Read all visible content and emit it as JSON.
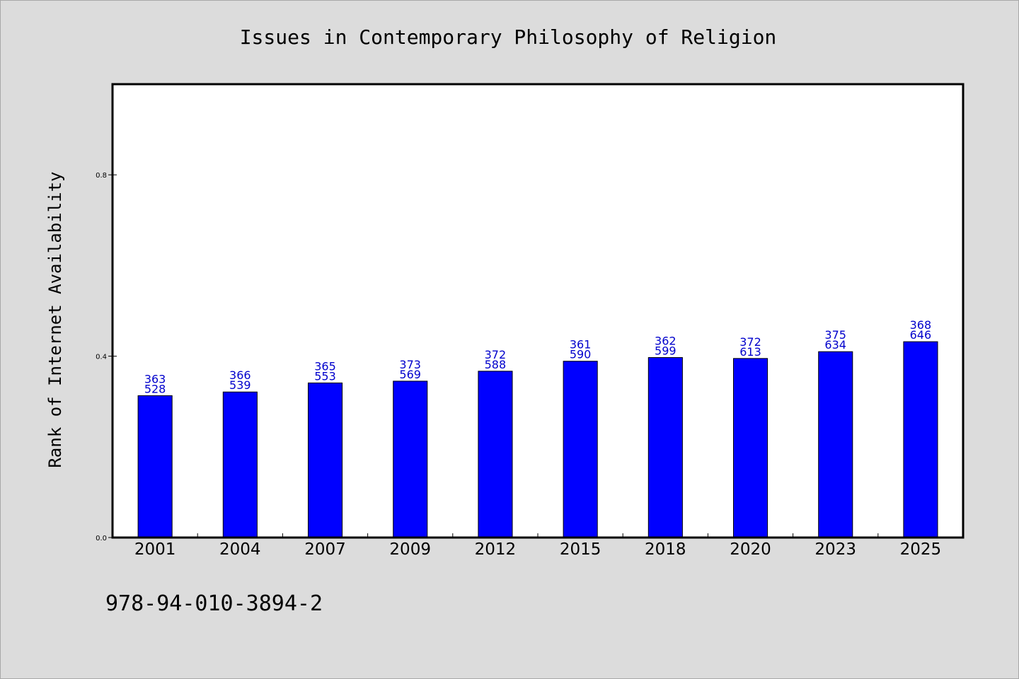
{
  "chart_data": {
    "type": "bar",
    "title": "Issues in Contemporary Philosophy of Religion",
    "xlabel": "",
    "ylabel": "Rank of Internet Availability",
    "categories": [
      "2001",
      "2004",
      "2007",
      "2009",
      "2012",
      "2015",
      "2018",
      "2020",
      "2023",
      "2025"
    ],
    "values": [
      0.313,
      0.321,
      0.341,
      0.345,
      0.367,
      0.389,
      0.397,
      0.395,
      0.41,
      0.432
    ],
    "data_labels": [
      [
        "363",
        "528"
      ],
      [
        "366",
        "539"
      ],
      [
        "365",
        "553"
      ],
      [
        "373",
        "569"
      ],
      [
        "372",
        "588"
      ],
      [
        "361",
        "590"
      ],
      [
        "362",
        "599"
      ],
      [
        "372",
        "613"
      ],
      [
        "375",
        "634"
      ],
      [
        "368",
        "646"
      ]
    ],
    "ylim": [
      0,
      1.0
    ],
    "yticks": [
      "0.0",
      "0.4",
      "0.8"
    ],
    "ytick_values": [
      0.0,
      0.4,
      0.8
    ],
    "grid": false,
    "bar_color": "#0000ff",
    "label_color": "#0000cc",
    "background_color": "#dcdcdc",
    "plot_background_color": "#ffffff"
  },
  "footer_text": "978-94-010-3894-2"
}
